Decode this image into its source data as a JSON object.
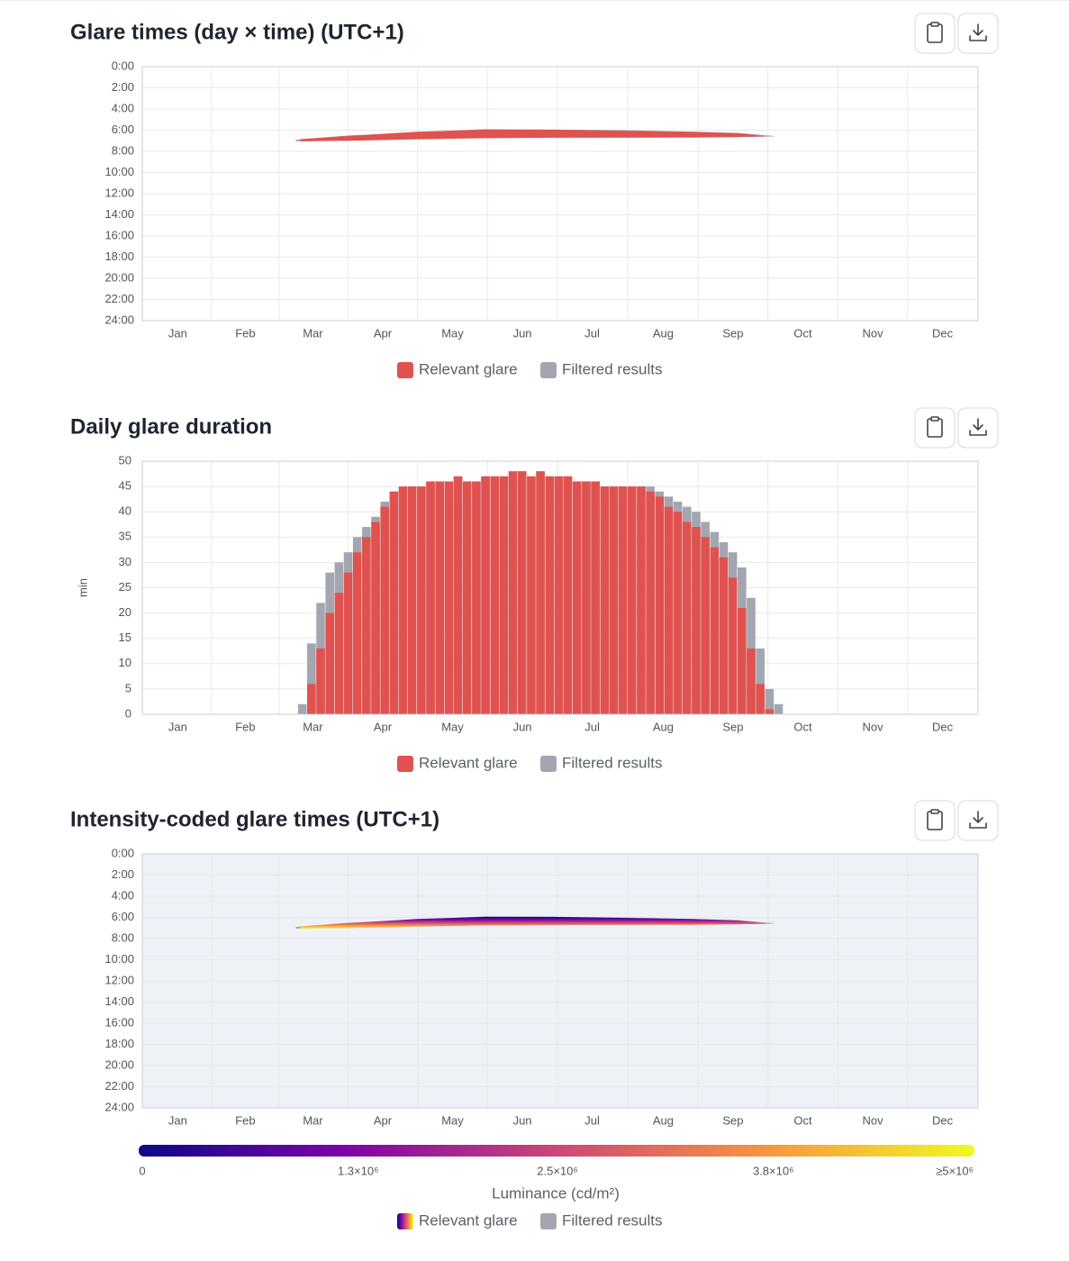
{
  "chart_data": [
    {
      "type": "band",
      "title": "Glare times (day × time) (UTC+1)",
      "xlim": [
        0,
        365
      ],
      "xticks": [
        {
          "value": 15.5,
          "label": "Jan"
        },
        {
          "value": 45,
          "label": "Feb"
        },
        {
          "value": 74.5,
          "label": "Mar"
        },
        {
          "value": 105,
          "label": "Apr"
        },
        {
          "value": 135.5,
          "label": "May"
        },
        {
          "value": 166,
          "label": "Jun"
        },
        {
          "value": 196.5,
          "label": "Jul"
        },
        {
          "value": 227.5,
          "label": "Aug"
        },
        {
          "value": 258,
          "label": "Sep"
        },
        {
          "value": 288.5,
          "label": "Oct"
        },
        {
          "value": 319,
          "label": "Nov"
        },
        {
          "value": 349.5,
          "label": "Dec"
        }
      ],
      "ylim": [
        24,
        0
      ],
      "yticks": [
        {
          "value": 0,
          "label": "0:00"
        },
        {
          "value": 2,
          "label": "2:00"
        },
        {
          "value": 4,
          "label": "4:00"
        },
        {
          "value": 6,
          "label": "6:00"
        },
        {
          "value": 8,
          "label": "8:00"
        },
        {
          "value": 10,
          "label": "10:00"
        },
        {
          "value": 12,
          "label": "12:00"
        },
        {
          "value": 14,
          "label": "14:00"
        },
        {
          "value": 16,
          "label": "16:00"
        },
        {
          "value": 18,
          "label": "18:00"
        },
        {
          "value": 20,
          "label": "20:00"
        },
        {
          "value": 22,
          "label": "22:00"
        },
        {
          "value": 24,
          "label": "24:00"
        }
      ],
      "grid": true,
      "series": [
        {
          "name": "Relevant glare",
          "color": "#e0524f",
          "x": [
            69,
            90,
            120,
            150,
            180,
            210,
            240,
            260,
            272
          ],
          "start": [
            6.85,
            6.55,
            6.15,
            5.95,
            5.95,
            6.05,
            6.15,
            6.3,
            6.55
          ],
          "end": [
            7.05,
            7.0,
            6.85,
            6.75,
            6.7,
            6.7,
            6.7,
            6.65,
            6.6
          ]
        },
        {
          "name": "Filtered results",
          "color": "#a3a6b0",
          "x": [
            67,
            90,
            150,
            210,
            260,
            276
          ],
          "start": [
            6.9,
            6.5,
            5.9,
            6.0,
            6.25,
            6.55
          ],
          "end": [
            7.05,
            7.0,
            6.75,
            6.7,
            6.65,
            6.6
          ]
        }
      ]
    },
    {
      "type": "bar",
      "title": "Daily glare duration",
      "ylabel": "min",
      "xlim": [
        0,
        365
      ],
      "xticks": [
        {
          "value": 15.5,
          "label": "Jan"
        },
        {
          "value": 45,
          "label": "Feb"
        },
        {
          "value": 74.5,
          "label": "Mar"
        },
        {
          "value": 105,
          "label": "Apr"
        },
        {
          "value": 135.5,
          "label": "May"
        },
        {
          "value": 166,
          "label": "Jun"
        },
        {
          "value": 196.5,
          "label": "Jul"
        },
        {
          "value": 227.5,
          "label": "Aug"
        },
        {
          "value": 258,
          "label": "Sep"
        },
        {
          "value": 288.5,
          "label": "Oct"
        },
        {
          "value": 319,
          "label": "Nov"
        },
        {
          "value": 349.5,
          "label": "Dec"
        }
      ],
      "ylim": [
        0,
        50
      ],
      "yticks": [
        0,
        5,
        10,
        15,
        20,
        25,
        30,
        35,
        40,
        45,
        50
      ],
      "grid": true,
      "x": [
        68,
        72,
        76,
        80,
        84,
        88,
        92,
        96,
        100,
        104,
        108,
        112,
        116,
        120,
        124,
        128,
        132,
        136,
        140,
        144,
        148,
        152,
        156,
        160,
        164,
        168,
        172,
        176,
        180,
        184,
        188,
        192,
        196,
        200,
        204,
        208,
        212,
        216,
        220,
        224,
        228,
        232,
        236,
        240,
        244,
        248,
        252,
        256,
        260,
        264,
        268,
        272,
        276
      ],
      "series": [
        {
          "name": "Relevant glare",
          "color": "#e0524f",
          "values": [
            0,
            6,
            13,
            20,
            24,
            28,
            32,
            35,
            38,
            41,
            44,
            45,
            45,
            45,
            46,
            46,
            46,
            47,
            46,
            46,
            47,
            47,
            47,
            48,
            48,
            47,
            48,
            47,
            47,
            47,
            46,
            46,
            46,
            45,
            45,
            45,
            45,
            45,
            44,
            43,
            41,
            40,
            38,
            37,
            35,
            33,
            31,
            27,
            21,
            13,
            6,
            1,
            0
          ]
        },
        {
          "name": "Filtered results",
          "color": "#a3a6b0",
          "values": [
            2,
            14,
            22,
            28,
            30,
            32,
            35,
            37,
            39,
            42,
            44,
            45,
            45,
            45,
            46,
            46,
            46,
            47,
            46,
            46,
            47,
            47,
            47,
            48,
            48,
            47,
            48,
            47,
            47,
            47,
            46,
            46,
            46,
            45,
            45,
            45,
            45,
            45,
            45,
            44,
            43,
            42,
            41,
            40,
            38,
            36,
            34,
            32,
            29,
            23,
            13,
            5,
            2
          ]
        }
      ]
    },
    {
      "type": "band",
      "title": "Intensity-coded glare times (UTC+1)",
      "xlim": [
        0,
        365
      ],
      "xticks": [
        {
          "value": 15.5,
          "label": "Jan"
        },
        {
          "value": 45,
          "label": "Feb"
        },
        {
          "value": 74.5,
          "label": "Mar"
        },
        {
          "value": 105,
          "label": "Apr"
        },
        {
          "value": 135.5,
          "label": "May"
        },
        {
          "value": 166,
          "label": "Jun"
        },
        {
          "value": 196.5,
          "label": "Jul"
        },
        {
          "value": 227.5,
          "label": "Aug"
        },
        {
          "value": 258,
          "label": "Sep"
        },
        {
          "value": 288.5,
          "label": "Oct"
        },
        {
          "value": 319,
          "label": "Nov"
        },
        {
          "value": 349.5,
          "label": "Dec"
        }
      ],
      "ylim": [
        24,
        0
      ],
      "yticks": [
        {
          "value": 0,
          "label": "0:00"
        },
        {
          "value": 2,
          "label": "2:00"
        },
        {
          "value": 4,
          "label": "4:00"
        },
        {
          "value": 6,
          "label": "6:00"
        },
        {
          "value": 8,
          "label": "8:00"
        },
        {
          "value": 10,
          "label": "10:00"
        },
        {
          "value": 12,
          "label": "12:00"
        },
        {
          "value": 14,
          "label": "14:00"
        },
        {
          "value": 16,
          "label": "16:00"
        },
        {
          "value": 18,
          "label": "18:00"
        },
        {
          "value": 20,
          "label": "20:00"
        },
        {
          "value": 22,
          "label": "22:00"
        },
        {
          "value": 24,
          "label": "24:00"
        }
      ],
      "grid": true,
      "plot_bgcolor": "#eef1f7",
      "colorscale": [
        "#0d0887",
        "#7e03a8",
        "#cc4778",
        "#f89540",
        "#f0f921"
      ],
      "colorbar": {
        "label": "Luminance (cd/m²)",
        "lim": [
          0,
          5000000
        ],
        "ticks": [
          0,
          {
            "value": 1300000,
            "label": "1.3×10⁶"
          },
          {
            "value": 2500000,
            "label": "2.5×10⁶"
          },
          {
            "value": 3800000,
            "label": "3.8×10⁶"
          },
          {
            "value": 5000000,
            "label": "≥5×10⁶"
          }
        ]
      },
      "series": [
        {
          "name": "Relevant glare",
          "x": [
            69,
            90,
            120,
            150,
            180,
            210,
            240,
            260,
            272
          ],
          "start": [
            6.85,
            6.55,
            6.15,
            5.95,
            5.95,
            6.05,
            6.15,
            6.3,
            6.55
          ],
          "end": [
            7.05,
            7.0,
            6.85,
            6.75,
            6.7,
            6.7,
            6.7,
            6.65,
            6.6
          ]
        },
        {
          "name": "Filtered results",
          "color": "#a3a6b0",
          "x": [
            67,
            90,
            150,
            210,
            260,
            276
          ],
          "start": [
            6.9,
            6.5,
            5.9,
            6.0,
            6.25,
            6.55
          ],
          "end": [
            7.05,
            7.0,
            6.75,
            6.7,
            6.65,
            6.6
          ]
        }
      ]
    }
  ]
}
